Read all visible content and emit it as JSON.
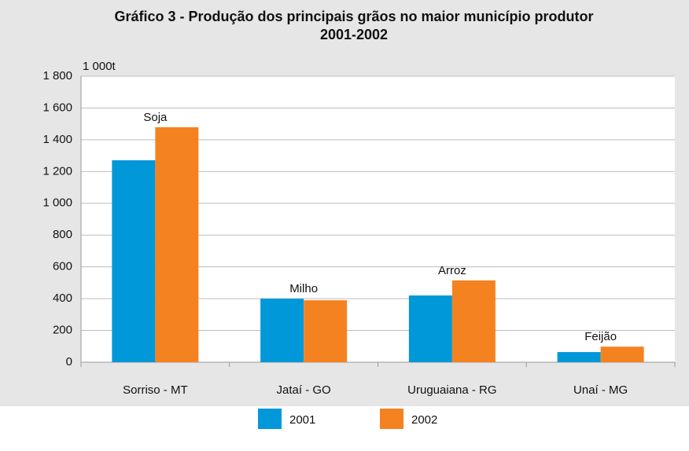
{
  "chart_data": {
    "type": "bar",
    "title": "Gráfico 3 - Produção dos principais grãos no maior município produtor",
    "subtitle": "2001-2002",
    "y_axis_label": "1 000t",
    "categories": [
      "Sorriso - MT",
      "Jataí - GO",
      "Uruguaiana - RG",
      "Unaí - MG"
    ],
    "annotations": [
      "Soja",
      "Milho",
      "Arroz",
      "Feijão"
    ],
    "series": [
      {
        "name": "2001",
        "color": "#0098d8",
        "values": [
          1271,
          400,
          420,
          64
        ]
      },
      {
        "name": "2002",
        "color": "#f58220",
        "values": [
          1479,
          390,
          515,
          98
        ]
      }
    ],
    "ylim": [
      0,
      1800
    ],
    "yticks": [
      0,
      200,
      400,
      600,
      800,
      {
        "value": 1000,
        "label": "1 000"
      },
      {
        "value": 1200,
        "label": "1 200"
      },
      {
        "value": 1400,
        "label": "1 400"
      },
      {
        "value": 1600,
        "label": "1 600"
      },
      {
        "value": 1800,
        "label": "1 800"
      }
    ],
    "grid": true,
    "legend": "bottom"
  }
}
